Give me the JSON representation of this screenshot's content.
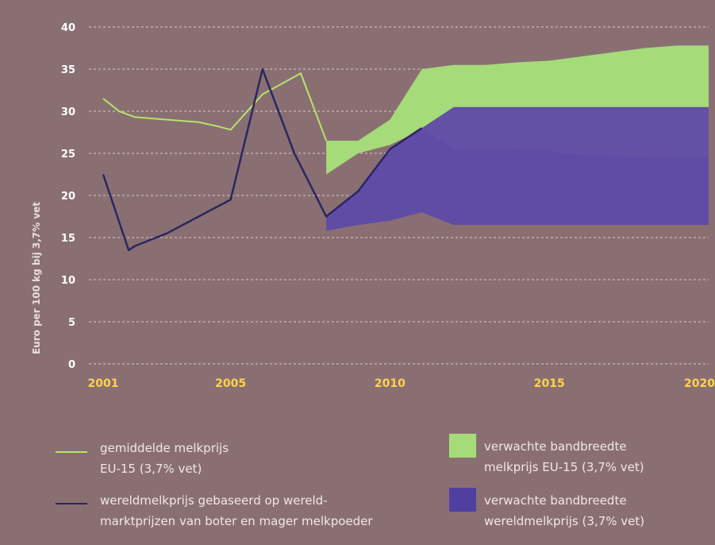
{
  "chart_data": {
    "type": "line",
    "ylabel": "Euro per 100 kg bij 3,7% vet",
    "ylim": [
      0,
      40
    ],
    "y_ticks": [
      "0",
      "5",
      "10",
      "15",
      "20",
      "25",
      "30",
      "35",
      "40"
    ],
    "xlim": [
      2001,
      2020
    ],
    "x_ticks": [
      "2001",
      "2005",
      "2010",
      "2015",
      "2020"
    ],
    "grid": "horizontal dashed",
    "series": [
      {
        "name": "gemiddelde melkprijs EU-15 (3,7% vet)",
        "color": "#b6e36a",
        "x": [
          2001,
          2001.5,
          2002,
          2003,
          2004,
          2004.6,
          2005,
          2006,
          2007.2,
          2008
        ],
        "y": [
          31.5,
          30,
          29.3,
          29,
          28.7,
          28.2,
          27.8,
          32,
          34.5,
          26.5
        ]
      },
      {
        "name": "wereldmelkprijs gebaseerd op wereld-marktprijzen van boter en mager melkpoeder",
        "color": "#2a2660",
        "x": [
          2001,
          2001.8,
          2002,
          2003,
          2004,
          2004.5,
          2005,
          2006,
          2007,
          2008,
          2009,
          2010,
          2011
        ],
        "y": [
          22.5,
          13.5,
          14,
          15.5,
          17.5,
          18.5,
          19.5,
          35,
          25,
          17.5,
          20.5,
          25.5,
          28
        ]
      }
    ],
    "bands": [
      {
        "name": "verwachte bandbreedte melkprijs EU-15 (3,7% vet)",
        "color": "#a6db7a",
        "x": [
          2008,
          2009,
          2010,
          2011,
          2012,
          2013,
          2014,
          2015,
          2016,
          2017,
          2018,
          2019,
          2020
        ],
        "upper": [
          26.5,
          26.5,
          29,
          35,
          35.5,
          35.5,
          35.8,
          36,
          36.5,
          37,
          37.5,
          37.8,
          37.8
        ],
        "lower": [
          22.5,
          25,
          26,
          27.8,
          25.5,
          25.3,
          25.5,
          25.3,
          24.8,
          24.6,
          24.5,
          24.4,
          24.4
        ]
      },
      {
        "name": "verwachte bandbreedte wereldmelkprijs (3,7% vet)",
        "color": "#5e4aa8",
        "x": [
          2008,
          2009,
          2010,
          2011,
          2012,
          2013,
          2014,
          2015,
          2016,
          2017,
          2018,
          2019,
          2020
        ],
        "upper": [
          17.5,
          20.5,
          25.5,
          28,
          30.5,
          30.5,
          30.5,
          30.5,
          30.5,
          30.5,
          30.5,
          30.5,
          30.5
        ],
        "lower": [
          15.8,
          16.5,
          17,
          18,
          16.5,
          16.5,
          16.5,
          16.5,
          16.5,
          16.5,
          16.5,
          16.5,
          16.5
        ]
      }
    ]
  },
  "legend": {
    "eu_line_1": "gemiddelde melkprijs",
    "eu_line_2": "EU-15 (3,7% vet)",
    "world_line_1": "wereldmelkprijs gebaseerd op wereld-",
    "world_line_2": "marktprijzen van boter en mager melkpoeder",
    "eu_band_1": "verwachte bandbreedte",
    "eu_band_2": "melkprijs EU-15 (3,7% vet)",
    "world_band_1": "verwachte bandbreedte",
    "world_band_2": "wereldmelkprijs (3,7% vet)"
  }
}
